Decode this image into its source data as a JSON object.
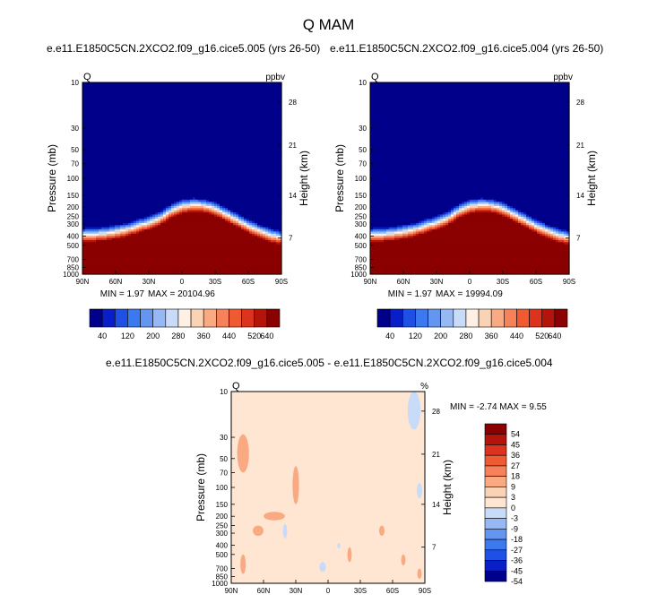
{
  "figure": {
    "title": "Q MAM",
    "top_left_title": "e.e11.E1850C5CN.2XCO2.f09_g16.cice5.005 (yrs 26-50)",
    "top_right_title": "e.e11.E1850C5CN.2XCO2.f09_g16.cice5.004 (yrs 26-50)",
    "bottom_title": "e.e11.E1850C5CN.2XCO2.f09_g16.cice5.005 - e.e11.E1850C5CN.2XCO2.f09_g16.cice5.004"
  },
  "colors": {
    "abs_scale": [
      "#00008b",
      "#0a1ec8",
      "#1e50e6",
      "#3c78f0",
      "#6496f0",
      "#96b9f5",
      "#c8dcfa",
      "#fff0e6",
      "#fad2b4",
      "#faaa82",
      "#f5825a",
      "#f05a32",
      "#dc321e",
      "#b4140a",
      "#8b0000"
    ],
    "diff_scale": [
      "#00008b",
      "#0a1ec8",
      "#1e50e6",
      "#3c78f0",
      "#6496f0",
      "#96b9f5",
      "#c8dcfa",
      "#ffe6d2",
      "#fad2b4",
      "#faaa82",
      "#f5825a",
      "#f05a32",
      "#dc321e",
      "#b4140a",
      "#8b0000"
    ]
  },
  "chart_data": [
    {
      "type": "heatmap",
      "title": "e.e11.E1850C5CN.2XCO2.f09_g16.cice5.005 (yrs 26-50)",
      "left_string": "Q",
      "right_string": "ppbv",
      "ylabel": "Pressure (mb)",
      "ylabel_right": "Height (km)",
      "x_ticks": [
        "90N",
        "60N",
        "30N",
        "0",
        "30S",
        "60S",
        "90S"
      ],
      "y_ticks": [
        "10",
        "30",
        "50",
        "70",
        "100",
        "150",
        "200",
        "250",
        "300",
        "400",
        "500",
        "700",
        "850",
        "1000"
      ],
      "y_ticks_right": [
        "28",
        "21",
        "14",
        "7"
      ],
      "ylim": [
        1000,
        10
      ],
      "y_scale": "log",
      "boundary_pressure_mb": [
        330,
        325,
        318,
        305,
        290,
        265,
        245,
        220,
        185,
        165,
        160,
        162,
        175,
        200,
        230,
        265,
        300,
        330,
        350
      ],
      "min_label": "MIN =",
      "min_value": "1.97",
      "max_label": "MAX =",
      "max_value": "20104.96",
      "colorbar_labels": [
        "40",
        "120",
        "200",
        "280",
        "360",
        "440",
        "520",
        "640"
      ]
    },
    {
      "type": "heatmap",
      "title": "e.e11.E1850C5CN.2XCO2.f09_g16.cice5.004 (yrs 26-50)",
      "left_string": "Q",
      "right_string": "ppbv",
      "ylabel": "Pressure (mb)",
      "ylabel_right": "Height (km)",
      "x_ticks": [
        "90N",
        "60N",
        "30N",
        "0",
        "30S",
        "60S",
        "90S"
      ],
      "y_ticks": [
        "10",
        "30",
        "50",
        "70",
        "100",
        "150",
        "200",
        "250",
        "300",
        "400",
        "500",
        "700",
        "850",
        "1000"
      ],
      "y_ticks_right": [
        "28",
        "21",
        "14",
        "7"
      ],
      "ylim": [
        1000,
        10
      ],
      "y_scale": "log",
      "boundary_pressure_mb": [
        330,
        325,
        318,
        305,
        290,
        265,
        245,
        220,
        185,
        165,
        160,
        162,
        175,
        200,
        230,
        265,
        300,
        330,
        350
      ],
      "min_label": "MIN =",
      "min_value": "1.97",
      "max_label": "MAX =",
      "max_value": "19994.09",
      "colorbar_labels": [
        "40",
        "120",
        "200",
        "280",
        "360",
        "440",
        "520",
        "640"
      ]
    },
    {
      "type": "heatmap",
      "title": "e.e11.E1850C5CN.2XCO2.f09_g16.cice5.005 - e.e11.E1850C5CN.2XCO2.f09_g16.cice5.004",
      "left_string": "Q",
      "right_string": "%",
      "ylabel": "Pressure (mb)",
      "ylabel_right": "Height (km)",
      "x_ticks": [
        "90N",
        "60N",
        "30N",
        "0",
        "30S",
        "60S",
        "90S"
      ],
      "y_ticks": [
        "10",
        "30",
        "50",
        "70",
        "100",
        "150",
        "200",
        "250",
        "300",
        "400",
        "500",
        "700",
        "850",
        "1000"
      ],
      "y_ticks_right": [
        "28",
        "21",
        "14",
        "7"
      ],
      "ylim": [
        1000,
        10
      ],
      "y_scale": "log",
      "background_value_range": [
        0,
        3
      ],
      "min_label": "MIN =",
      "min_value": "-2.74",
      "max_label": "MAX =",
      "max_value": "9.55",
      "colorbar_labels": [
        "54",
        "45",
        "36",
        "27",
        "18",
        "9",
        "3",
        "0",
        "-3",
        "-9",
        "-18",
        "-27",
        "-36",
        "-45",
        "-54"
      ]
    }
  ]
}
